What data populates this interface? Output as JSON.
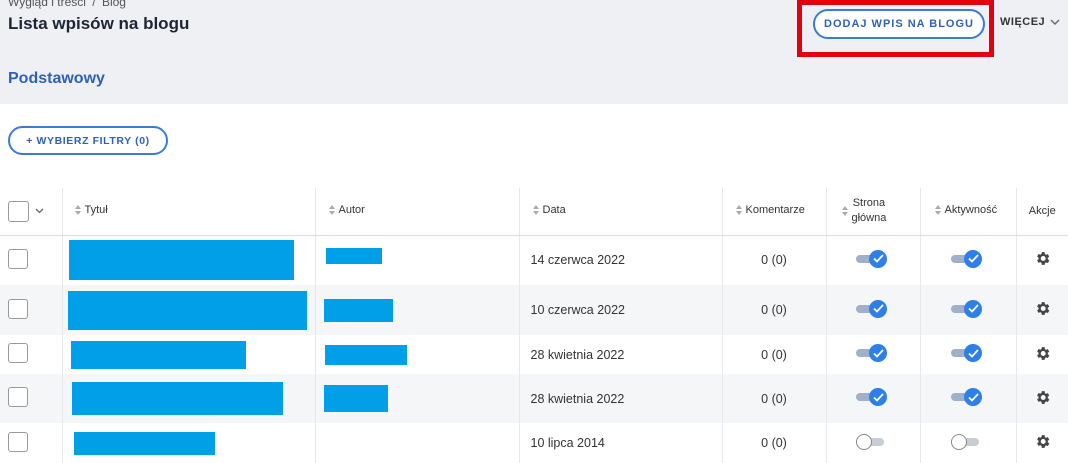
{
  "breadcrumb": [
    "Wygląd i treści",
    "/",
    "Blog"
  ],
  "page_title": "Lista wpisów na blogu",
  "add_button": "DODAJ WPIS NA BLOGU",
  "more_label": "WIĘCEJ",
  "tab_label": "Podstawowy",
  "filter_button": "+ WYBIERZ FILTRY (0)",
  "columns": {
    "title": "Tytuł",
    "author": "Autor",
    "date": "Data",
    "comments": "Komentarze",
    "home_line1": "Strona",
    "home_line2": "główna",
    "active": "Aktywność",
    "actions": "Akcje"
  },
  "rows": [
    {
      "date": "14 czerwca 2022",
      "comments": "0 (0)",
      "home": "on",
      "active": "on"
    },
    {
      "date": "10 czerwca 2022",
      "comments": "0 (0)",
      "home": "on",
      "active": "on"
    },
    {
      "date": "28 kwietnia 2022",
      "comments": "0 (0)",
      "home": "on",
      "active": "on"
    },
    {
      "date": "28 kwietnia 2022",
      "comments": "0 (0)",
      "home": "on",
      "active": "on"
    },
    {
      "date": "10 lipca 2014",
      "comments": "0 (0)",
      "home": "off",
      "active": "off"
    }
  ],
  "colors": {
    "accent": "#2f62b5",
    "highlight": "#e3000f",
    "redaction": "#009fe8",
    "toggle_on": "#2f7fe8"
  }
}
